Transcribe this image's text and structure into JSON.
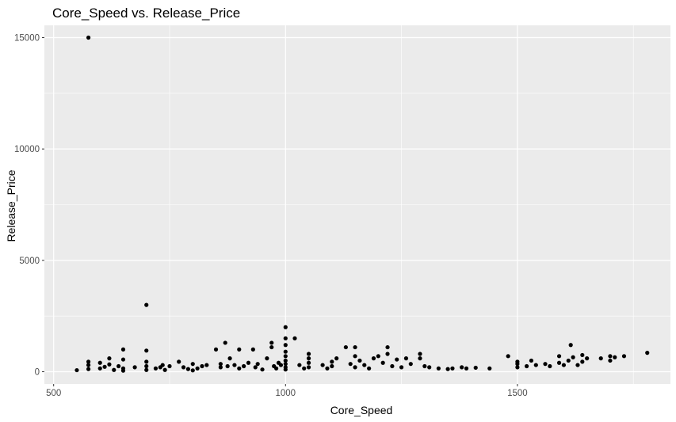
{
  "chart_data": {
    "type": "scatter",
    "title": "Core_Speed vs. Release_Price",
    "xlabel": "Core_Speed",
    "ylabel": "Release_Price",
    "xlim": [
      480,
      1830
    ],
    "ylim": [
      -550,
      15550
    ],
    "x_ticks": [
      500,
      1000,
      1500
    ],
    "y_ticks": [
      0,
      5000,
      10000,
      15000
    ],
    "grid": true,
    "legend": "none",
    "colors": {
      "panel_background": "#ebebeb",
      "grid_major": "#ffffff",
      "point": "#000000"
    },
    "points": [
      [
        550,
        70
      ],
      [
        575,
        15000
      ],
      [
        575,
        120
      ],
      [
        575,
        300
      ],
      [
        575,
        450
      ],
      [
        600,
        150
      ],
      [
        600,
        400
      ],
      [
        610,
        220
      ],
      [
        620,
        330
      ],
      [
        620,
        600
      ],
      [
        630,
        80
      ],
      [
        640,
        250
      ],
      [
        650,
        1000
      ],
      [
        650,
        150
      ],
      [
        650,
        50
      ],
      [
        650,
        550
      ],
      [
        675,
        200
      ],
      [
        700,
        3000
      ],
      [
        700,
        950
      ],
      [
        700,
        450
      ],
      [
        700,
        80
      ],
      [
        700,
        250
      ],
      [
        720,
        150
      ],
      [
        730,
        200
      ],
      [
        735,
        300
      ],
      [
        740,
        80
      ],
      [
        750,
        250
      ],
      [
        770,
        450
      ],
      [
        780,
        200
      ],
      [
        790,
        120
      ],
      [
        800,
        350
      ],
      [
        800,
        60
      ],
      [
        810,
        150
      ],
      [
        820,
        250
      ],
      [
        830,
        300
      ],
      [
        850,
        1000
      ],
      [
        860,
        200
      ],
      [
        860,
        350
      ],
      [
        870,
        1300
      ],
      [
        875,
        250
      ],
      [
        880,
        600
      ],
      [
        890,
        300
      ],
      [
        900,
        1000
      ],
      [
        900,
        150
      ],
      [
        910,
        250
      ],
      [
        920,
        400
      ],
      [
        930,
        1000
      ],
      [
        935,
        200
      ],
      [
        940,
        350
      ],
      [
        950,
        100
      ],
      [
        960,
        600
      ],
      [
        970,
        1300
      ],
      [
        970,
        1100
      ],
      [
        975,
        250
      ],
      [
        980,
        150
      ],
      [
        985,
        400
      ],
      [
        990,
        300
      ],
      [
        1000,
        2000
      ],
      [
        1000,
        1500
      ],
      [
        1000,
        1200
      ],
      [
        1000,
        900
      ],
      [
        1000,
        700
      ],
      [
        1000,
        500
      ],
      [
        1000,
        350
      ],
      [
        1000,
        200
      ],
      [
        1000,
        100
      ],
      [
        1020,
        1500
      ],
      [
        1030,
        300
      ],
      [
        1040,
        150
      ],
      [
        1050,
        800
      ],
      [
        1050,
        600
      ],
      [
        1050,
        400
      ],
      [
        1050,
        200
      ],
      [
        1080,
        300
      ],
      [
        1090,
        150
      ],
      [
        1100,
        450
      ],
      [
        1100,
        250
      ],
      [
        1110,
        600
      ],
      [
        1130,
        1100
      ],
      [
        1140,
        350
      ],
      [
        1150,
        1100
      ],
      [
        1150,
        700
      ],
      [
        1150,
        200
      ],
      [
        1160,
        500
      ],
      [
        1170,
        300
      ],
      [
        1180,
        150
      ],
      [
        1190,
        600
      ],
      [
        1200,
        700
      ],
      [
        1210,
        400
      ],
      [
        1220,
        1100
      ],
      [
        1220,
        800
      ],
      [
        1230,
        250
      ],
      [
        1240,
        550
      ],
      [
        1250,
        200
      ],
      [
        1260,
        600
      ],
      [
        1270,
        350
      ],
      [
        1290,
        800
      ],
      [
        1290,
        600
      ],
      [
        1300,
        250
      ],
      [
        1310,
        200
      ],
      [
        1330,
        150
      ],
      [
        1350,
        120
      ],
      [
        1360,
        150
      ],
      [
        1380,
        200
      ],
      [
        1390,
        150
      ],
      [
        1410,
        180
      ],
      [
        1440,
        150
      ],
      [
        1480,
        700
      ],
      [
        1500,
        450
      ],
      [
        1500,
        350
      ],
      [
        1500,
        200
      ],
      [
        1520,
        250
      ],
      [
        1530,
        500
      ],
      [
        1540,
        300
      ],
      [
        1560,
        350
      ],
      [
        1570,
        250
      ],
      [
        1590,
        400
      ],
      [
        1590,
        700
      ],
      [
        1600,
        300
      ],
      [
        1610,
        500
      ],
      [
        1615,
        1200
      ],
      [
        1620,
        650
      ],
      [
        1630,
        300
      ],
      [
        1640,
        450
      ],
      [
        1640,
        750
      ],
      [
        1650,
        600
      ],
      [
        1680,
        600
      ],
      [
        1700,
        700
      ],
      [
        1700,
        500
      ],
      [
        1710,
        650
      ],
      [
        1730,
        700
      ],
      [
        1780,
        850
      ]
    ]
  }
}
